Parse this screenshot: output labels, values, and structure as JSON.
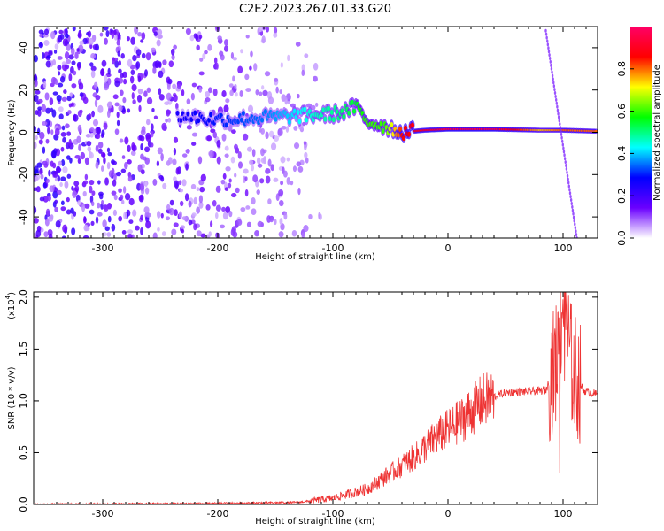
{
  "title": "C2E2.2023.267.01.33.G20",
  "chart_data": [
    {
      "type": "heatmap",
      "name": "spectrogram",
      "xlabel": "Height of straight line (km)",
      "ylabel": "Frequency (Hz)",
      "xlim": [
        -360,
        130
      ],
      "ylim": [
        -50,
        50
      ],
      "xticks": [
        -300,
        -200,
        -100,
        0,
        100
      ],
      "yticks": [
        -40,
        -20,
        0,
        20,
        40
      ],
      "colorbar": {
        "label": "Normalized spectral amplitude",
        "range": [
          0,
          1
        ],
        "ticks": [
          "0.0",
          "0.2",
          "0.4",
          "0.6",
          "0.8"
        ],
        "colors": [
          "#ffffff",
          "#6a00ff",
          "#0000ff",
          "#00ffff",
          "#00ff00",
          "#ffff00",
          "#ff0000",
          "#ff0066"
        ]
      },
      "features": {
        "noise_region_x": [
          -360,
          -110
        ],
        "signal_track": [
          {
            "x": -235,
            "f": 8,
            "a": 0.25
          },
          {
            "x": -200,
            "f": 6,
            "a": 0.3
          },
          {
            "x": -160,
            "f": 7,
            "a": 0.35
          },
          {
            "x": -120,
            "f": 8,
            "a": 0.45
          },
          {
            "x": -95,
            "f": 9,
            "a": 0.5
          },
          {
            "x": -80,
            "f": 12,
            "a": 0.55
          },
          {
            "x": -70,
            "f": 5,
            "a": 0.6
          },
          {
            "x": -55,
            "f": 3,
            "a": 0.6
          },
          {
            "x": -40,
            "f": 0,
            "a": 0.85
          },
          {
            "x": -20,
            "f": 1,
            "a": 0.9
          },
          {
            "x": 0,
            "f": 1.5,
            "a": 0.95
          },
          {
            "x": 40,
            "f": 1.5,
            "a": 0.95
          },
          {
            "x": 80,
            "f": 1,
            "a": 0.75
          },
          {
            "x": 100,
            "f": 1,
            "a": 0.8
          },
          {
            "x": 130,
            "f": 0.5,
            "a": 0.8
          }
        ],
        "diagonal_line": {
          "x_start": 85,
          "f_start": 48,
          "x_end": 112,
          "f_end": -50
        }
      }
    },
    {
      "type": "line",
      "name": "snr",
      "xlabel": "Height of straight line (km)",
      "ylabel": "SNR (10 * v/v)",
      "yscale_label": "(x10",
      "yscale_exp": "4",
      "yscale_close": ")",
      "xlim": [
        -360,
        130
      ],
      "ylim": [
        0,
        2.05
      ],
      "xticks": [
        -300,
        -200,
        -100,
        0,
        100
      ],
      "yticks": [
        "0.0",
        "0.5",
        "1.0",
        "1.5",
        "2.0"
      ],
      "color": "#ee3333",
      "envelope": [
        {
          "x": -360,
          "y": 0.0
        },
        {
          "x": -200,
          "y": 0.01
        },
        {
          "x": -130,
          "y": 0.02
        },
        {
          "x": -100,
          "y": 0.06
        },
        {
          "x": -70,
          "y": 0.15
        },
        {
          "x": -50,
          "y": 0.3
        },
        {
          "x": -30,
          "y": 0.45
        },
        {
          "x": -10,
          "y": 0.65
        },
        {
          "x": 10,
          "y": 0.8
        },
        {
          "x": 30,
          "y": 1.0
        },
        {
          "x": 50,
          "y": 1.08
        },
        {
          "x": 85,
          "y": 1.1
        },
        {
          "x": 95,
          "y": 1.4
        },
        {
          "x": 100,
          "y": 2.0
        },
        {
          "x": 108,
          "y": 1.3
        },
        {
          "x": 118,
          "y": 1.1
        },
        {
          "x": 130,
          "y": 1.06
        }
      ]
    }
  ]
}
